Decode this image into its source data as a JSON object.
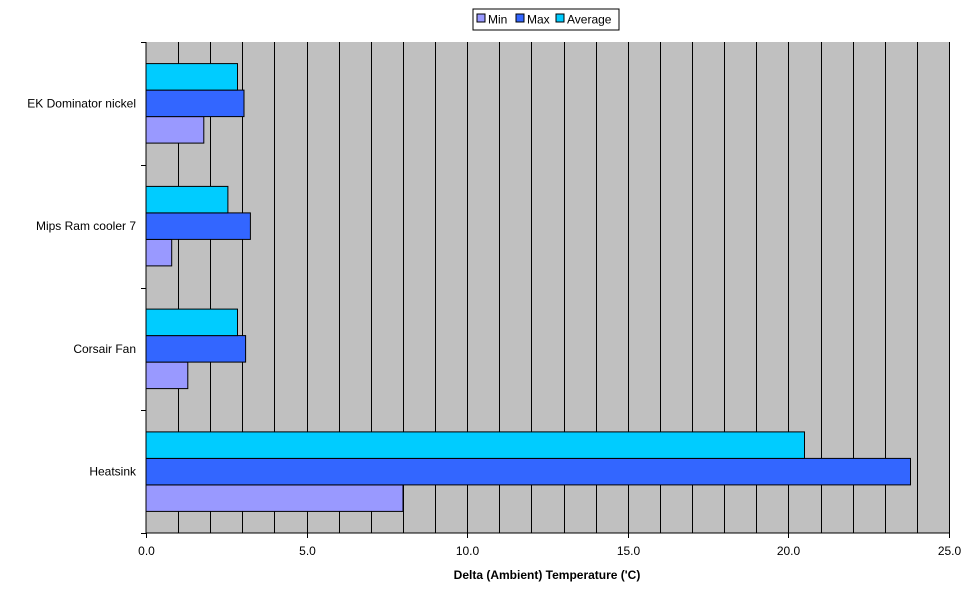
{
  "chart_data": {
    "type": "bar",
    "orientation": "horizontal",
    "categories": [
      "EK Dominator nickel",
      "Mips Ram cooler 7",
      "Corsair Fan",
      "Heatsink"
    ],
    "series": [
      {
        "name": "Min",
        "values": [
          1.8,
          0.8,
          1.3,
          8.0
        ],
        "color": "#9999ff"
      },
      {
        "name": "Max",
        "values": [
          3.05,
          3.25,
          3.1,
          23.8
        ],
        "color": "#3366ff"
      },
      {
        "name": "Average",
        "values": [
          2.85,
          2.55,
          2.85,
          20.5
        ],
        "color": "#00ccff"
      }
    ],
    "xlabel": "Delta (Ambient) Temperature ('C)",
    "ylabel": "",
    "xlim": [
      0,
      25
    ],
    "x_ticks": [
      "0.0",
      "5.0",
      "10.0",
      "15.0",
      "20.0",
      "25.0"
    ],
    "x_gridline_step": 1,
    "grid": true,
    "legend_position": "top-center",
    "plot_background": "#c0c0c0"
  }
}
